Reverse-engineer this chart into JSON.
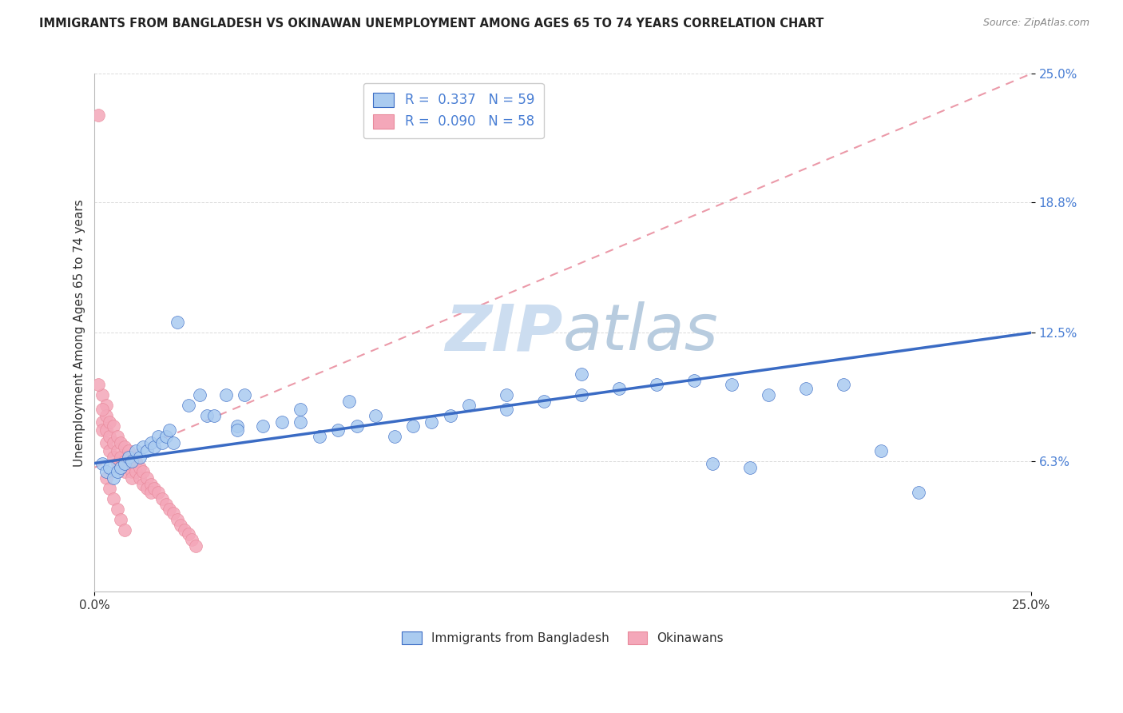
{
  "title": "IMMIGRANTS FROM BANGLADESH VS OKINAWAN UNEMPLOYMENT AMONG AGES 65 TO 74 YEARS CORRELATION CHART",
  "source": "Source: ZipAtlas.com",
  "ylabel": "Unemployment Among Ages 65 to 74 years",
  "xlim": [
    0.0,
    0.25
  ],
  "ylim": [
    0.0,
    0.25
  ],
  "ytick_positions": [
    0.063,
    0.125,
    0.188,
    0.25
  ],
  "ytick_labels": [
    "6.3%",
    "12.5%",
    "18.8%",
    "25.0%"
  ],
  "xtick_positions": [
    0.0,
    0.25
  ],
  "xtick_labels": [
    "0.0%",
    "25.0%"
  ],
  "R1": 0.337,
  "N1": 59,
  "R2": 0.09,
  "N2": 58,
  "series1_color": "#aacbf0",
  "series2_color": "#f4a7b9",
  "line1_color": "#3a6bc4",
  "line2_color": "#e8889a",
  "watermark_color": "#ccddf0",
  "background_color": "#ffffff",
  "grid_color": "#cccccc",
  "bangladesh_x": [
    0.002,
    0.003,
    0.004,
    0.005,
    0.006,
    0.007,
    0.008,
    0.009,
    0.01,
    0.011,
    0.012,
    0.013,
    0.014,
    0.015,
    0.016,
    0.017,
    0.018,
    0.019,
    0.02,
    0.021,
    0.022,
    0.025,
    0.028,
    0.03,
    0.032,
    0.035,
    0.038,
    0.04,
    0.045,
    0.05,
    0.055,
    0.06,
    0.065,
    0.07,
    0.075,
    0.08,
    0.085,
    0.09,
    0.095,
    0.1,
    0.11,
    0.12,
    0.13,
    0.14,
    0.15,
    0.16,
    0.17,
    0.18,
    0.19,
    0.2,
    0.038,
    0.055,
    0.068,
    0.11,
    0.13,
    0.165,
    0.175,
    0.21,
    0.22
  ],
  "bangladesh_y": [
    0.062,
    0.058,
    0.06,
    0.055,
    0.058,
    0.06,
    0.062,
    0.065,
    0.063,
    0.068,
    0.065,
    0.07,
    0.068,
    0.072,
    0.07,
    0.075,
    0.072,
    0.075,
    0.078,
    0.072,
    0.13,
    0.09,
    0.095,
    0.085,
    0.085,
    0.095,
    0.08,
    0.095,
    0.08,
    0.082,
    0.082,
    0.075,
    0.078,
    0.08,
    0.085,
    0.075,
    0.08,
    0.082,
    0.085,
    0.09,
    0.088,
    0.092,
    0.095,
    0.098,
    0.1,
    0.102,
    0.1,
    0.095,
    0.098,
    0.1,
    0.078,
    0.088,
    0.092,
    0.095,
    0.105,
    0.062,
    0.06,
    0.068,
    0.048
  ],
  "okinawa_x": [
    0.001,
    0.002,
    0.002,
    0.002,
    0.003,
    0.003,
    0.003,
    0.003,
    0.004,
    0.004,
    0.004,
    0.005,
    0.005,
    0.005,
    0.006,
    0.006,
    0.006,
    0.007,
    0.007,
    0.007,
    0.008,
    0.008,
    0.008,
    0.009,
    0.009,
    0.01,
    0.01,
    0.01,
    0.011,
    0.011,
    0.012,
    0.012,
    0.013,
    0.013,
    0.014,
    0.014,
    0.015,
    0.015,
    0.016,
    0.017,
    0.018,
    0.019,
    0.02,
    0.021,
    0.022,
    0.023,
    0.024,
    0.025,
    0.026,
    0.027,
    0.003,
    0.004,
    0.005,
    0.006,
    0.007,
    0.008,
    0.001,
    0.002
  ],
  "okinawa_y": [
    0.23,
    0.095,
    0.082,
    0.078,
    0.09,
    0.085,
    0.078,
    0.072,
    0.082,
    0.075,
    0.068,
    0.08,
    0.072,
    0.065,
    0.075,
    0.068,
    0.062,
    0.072,
    0.065,
    0.06,
    0.07,
    0.063,
    0.058,
    0.068,
    0.062,
    0.065,
    0.058,
    0.055,
    0.063,
    0.058,
    0.06,
    0.055,
    0.058,
    0.052,
    0.055,
    0.05,
    0.052,
    0.048,
    0.05,
    0.048,
    0.045,
    0.042,
    0.04,
    0.038,
    0.035,
    0.032,
    0.03,
    0.028,
    0.025,
    0.022,
    0.055,
    0.05,
    0.045,
    0.04,
    0.035,
    0.03,
    0.1,
    0.088
  ],
  "blue_line_y0": 0.062,
  "blue_line_y1": 0.125,
  "pink_line_y0": 0.06,
  "pink_line_y1": 0.25
}
